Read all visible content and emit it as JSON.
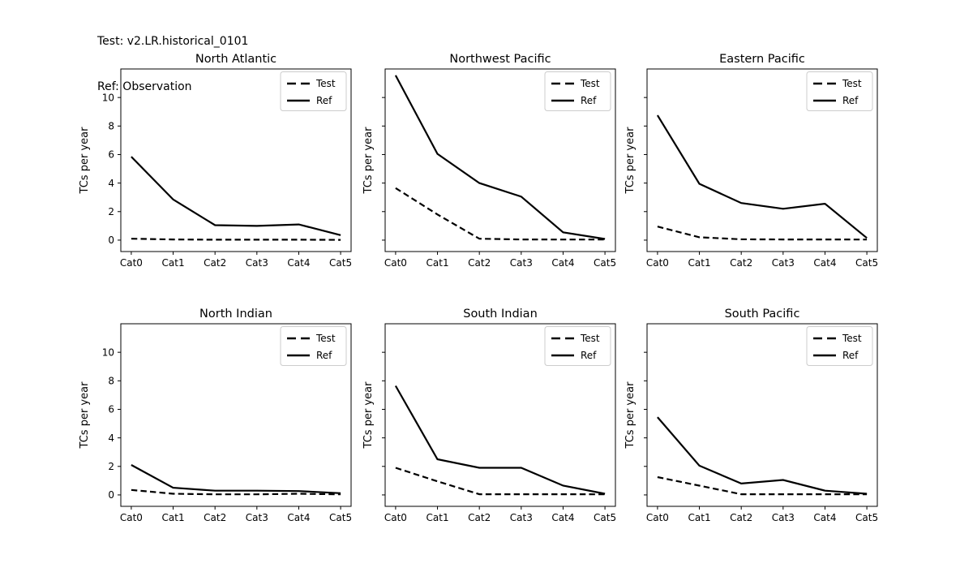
{
  "header": {
    "test_line": "Test: v2.LR.historical_0101",
    "ref_line": "Ref: Observation"
  },
  "colors": {
    "line": "#000000",
    "axis": "#000000",
    "legend_border": "#cccccc",
    "background": "#ffffff"
  },
  "chart_data": [
    {
      "type": "line",
      "title": "North Atlantic",
      "ylabel": "TCs per year",
      "categories": [
        "Cat0",
        "Cat1",
        "Cat2",
        "Cat3",
        "Cat4",
        "Cat5"
      ],
      "yticks": [
        0,
        2,
        4,
        6,
        8,
        10
      ],
      "ylim": [
        -0.8,
        12.0
      ],
      "show_ytick_labels": true,
      "grid": false,
      "legend_position": "upper right",
      "series": [
        {
          "name": "Test",
          "style": "dashed",
          "values": [
            0.1,
            0.05,
            0.03,
            0.03,
            0.03,
            0.02
          ]
        },
        {
          "name": "Ref",
          "style": "solid",
          "values": [
            5.85,
            2.85,
            1.05,
            1.0,
            1.1,
            0.35
          ]
        }
      ]
    },
    {
      "type": "line",
      "title": "Northwest Pacific",
      "ylabel": "TCs per year",
      "categories": [
        "Cat0",
        "Cat1",
        "Cat2",
        "Cat3",
        "Cat4",
        "Cat5"
      ],
      "yticks": [
        0,
        2,
        4,
        6,
        8,
        10
      ],
      "ylim": [
        -0.8,
        12.0
      ],
      "show_ytick_labels": false,
      "grid": false,
      "legend_position": "upper right",
      "series": [
        {
          "name": "Test",
          "style": "dashed",
          "values": [
            3.65,
            1.8,
            0.1,
            0.05,
            0.04,
            0.04
          ]
        },
        {
          "name": "Ref",
          "style": "solid",
          "values": [
            11.55,
            6.05,
            4.0,
            3.05,
            0.55,
            0.08
          ]
        }
      ]
    },
    {
      "type": "line",
      "title": "Eastern Pacific",
      "ylabel": "TCs per year",
      "categories": [
        "Cat0",
        "Cat1",
        "Cat2",
        "Cat3",
        "Cat4",
        "Cat5"
      ],
      "yticks": [
        0,
        2,
        4,
        6,
        8,
        10
      ],
      "ylim": [
        -0.8,
        12.0
      ],
      "show_ytick_labels": false,
      "grid": false,
      "legend_position": "upper right",
      "series": [
        {
          "name": "Test",
          "style": "dashed",
          "values": [
            0.95,
            0.2,
            0.06,
            0.05,
            0.05,
            0.04
          ]
        },
        {
          "name": "Ref",
          "style": "solid",
          "values": [
            8.75,
            3.95,
            2.6,
            2.2,
            2.55,
            0.15
          ]
        }
      ]
    },
    {
      "type": "line",
      "title": "North Indian",
      "ylabel": "TCs per year",
      "categories": [
        "Cat0",
        "Cat1",
        "Cat2",
        "Cat3",
        "Cat4",
        "Cat5"
      ],
      "yticks": [
        0,
        2,
        4,
        6,
        8,
        10
      ],
      "ylim": [
        -0.8,
        12.0
      ],
      "show_ytick_labels": true,
      "grid": false,
      "legend_position": "upper right",
      "series": [
        {
          "name": "Test",
          "style": "dashed",
          "values": [
            0.35,
            0.08,
            0.04,
            0.04,
            0.08,
            0.04
          ]
        },
        {
          "name": "Ref",
          "style": "solid",
          "values": [
            2.1,
            0.5,
            0.3,
            0.3,
            0.27,
            0.12
          ]
        }
      ]
    },
    {
      "type": "line",
      "title": "South Indian",
      "ylabel": "TCs per year",
      "categories": [
        "Cat0",
        "Cat1",
        "Cat2",
        "Cat3",
        "Cat4",
        "Cat5"
      ],
      "yticks": [
        0,
        2,
        4,
        6,
        8,
        10
      ],
      "ylim": [
        -0.8,
        12.0
      ],
      "show_ytick_labels": false,
      "grid": false,
      "legend_position": "upper right",
      "series": [
        {
          "name": "Test",
          "style": "dashed",
          "values": [
            1.9,
            0.95,
            0.05,
            0.05,
            0.05,
            0.04
          ]
        },
        {
          "name": "Ref",
          "style": "solid",
          "values": [
            7.65,
            2.5,
            1.9,
            1.9,
            0.65,
            0.08
          ]
        }
      ]
    },
    {
      "type": "line",
      "title": "South Pacific",
      "ylabel": "TCs per year",
      "categories": [
        "Cat0",
        "Cat1",
        "Cat2",
        "Cat3",
        "Cat4",
        "Cat5"
      ],
      "yticks": [
        0,
        2,
        4,
        6,
        8,
        10
      ],
      "ylim": [
        -0.8,
        12.0
      ],
      "show_ytick_labels": false,
      "grid": false,
      "legend_position": "upper right",
      "series": [
        {
          "name": "Test",
          "style": "dashed",
          "values": [
            1.25,
            0.65,
            0.05,
            0.05,
            0.05,
            0.04
          ]
        },
        {
          "name": "Ref",
          "style": "solid",
          "values": [
            5.45,
            2.05,
            0.8,
            1.05,
            0.3,
            0.08
          ]
        }
      ]
    }
  ]
}
